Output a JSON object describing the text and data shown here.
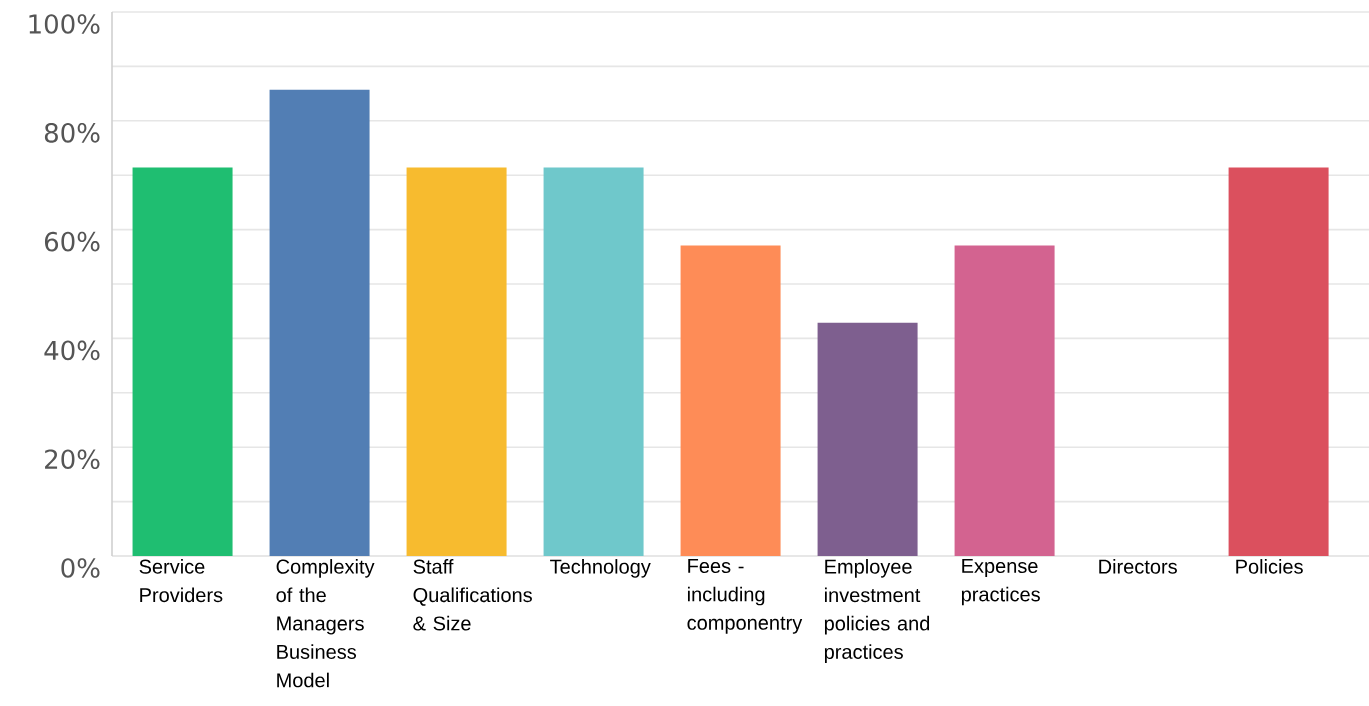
{
  "chart_data": {
    "type": "bar",
    "categories": [
      "Service Providers",
      "Complexity of the Managers Business Model",
      "Staff Qualifications & Size",
      "Technology",
      "Fees - including componentry",
      "Employee investment policies and practices",
      "Expense practices",
      "Directors",
      "Policies"
    ],
    "values": [
      71.4,
      85.7,
      71.4,
      71.4,
      57.1,
      42.9,
      57.1,
      0,
      71.4
    ],
    "colors": [
      "#1fbe71",
      "#527eb4",
      "#f7bb2f",
      "#6fc8cb",
      "#fe8c57",
      "#7e5f8f",
      "#d36390",
      "#7f7f7f",
      "#db505e"
    ],
    "ylim": [
      0,
      100
    ],
    "yticks": [
      {
        "value": 0,
        "label": "0%"
      },
      {
        "value": 10,
        "label": null
      },
      {
        "value": 20,
        "label": "20%"
      },
      {
        "value": 30,
        "label": null
      },
      {
        "value": 40,
        "label": "40%"
      },
      {
        "value": 50,
        "label": null
      },
      {
        "value": 60,
        "label": "60%"
      },
      {
        "value": 70,
        "label": null
      },
      {
        "value": 80,
        "label": "80%"
      },
      {
        "value": 90,
        "label": null
      },
      {
        "value": 100,
        "label": "100%"
      }
    ],
    "grid": "y"
  }
}
